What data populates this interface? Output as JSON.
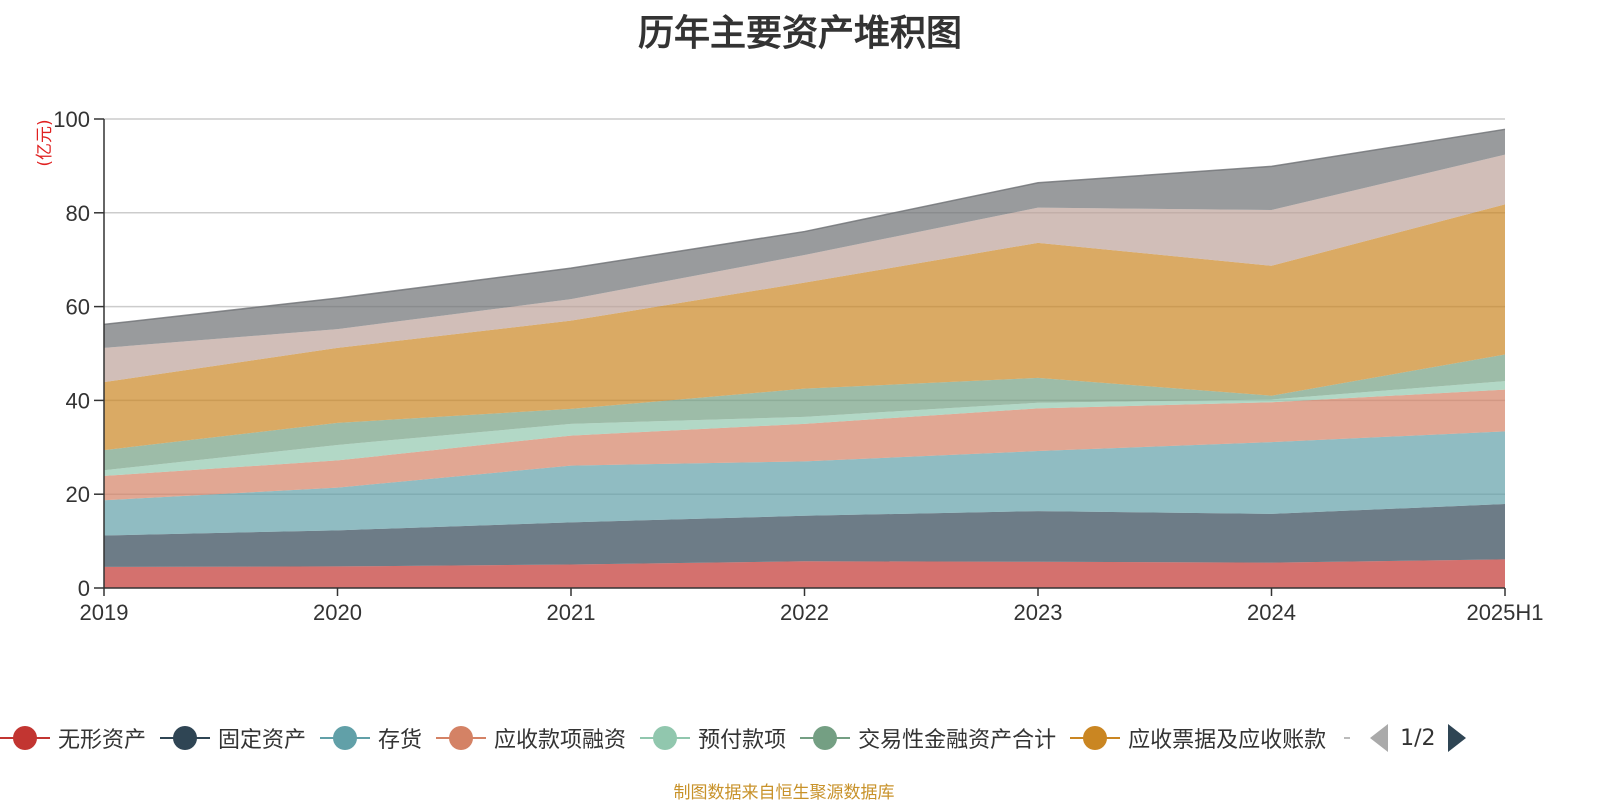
{
  "chart_data": {
    "type": "area",
    "stacked": true,
    "title": "历年主要资产堆积图",
    "ylabel": "亿元",
    "xlabel": "",
    "ylim": [
      0,
      100
    ],
    "yticks": [
      0,
      20,
      40,
      60,
      80,
      100
    ],
    "grid": true,
    "legend_placement": "bottom",
    "categories": [
      "2019",
      "2020",
      "2021",
      "2022",
      "2023",
      "2024",
      "2025H1"
    ],
    "series": [
      {
        "name": "无形资产",
        "color": "#c23531",
        "values": [
          4.5,
          4.6,
          5.0,
          5.7,
          5.6,
          5.4,
          6.1
        ]
      },
      {
        "name": "固定资产",
        "color": "#2f4554",
        "values": [
          6.7,
          7.7,
          9.0,
          9.7,
          10.8,
          10.4,
          11.8
        ]
      },
      {
        "name": "存货",
        "color": "#61a0a8",
        "values": [
          7.5,
          9.1,
          12.1,
          11.6,
          12.8,
          15.3,
          15.5
        ]
      },
      {
        "name": "应收款项融资",
        "color": "#d48265",
        "values": [
          5.2,
          5.8,
          6.4,
          8.0,
          9.1,
          8.5,
          8.9
        ]
      },
      {
        "name": "预付款项",
        "color": "#91c7ae",
        "values": [
          1.2,
          3.3,
          2.5,
          1.5,
          1.2,
          0.6,
          1.8
        ]
      },
      {
        "name": "交易性金融资产合计",
        "color": "#749f83",
        "values": [
          4.3,
          4.7,
          3.2,
          6.0,
          5.3,
          0.8,
          5.7
        ]
      },
      {
        "name": "应收票据及应收账款",
        "color": "#ca8622",
        "values": [
          14.5,
          16.0,
          18.8,
          22.6,
          28.8,
          27.7,
          32.0
        ]
      },
      {
        "name": "",
        "color": "#bda29a",
        "values": [
          7.3,
          4.0,
          4.6,
          5.9,
          7.5,
          11.9,
          10.6
        ]
      },
      {
        "name": "",
        "color": "#6e7074",
        "values": [
          5.0,
          6.6,
          6.6,
          5.0,
          5.3,
          9.3,
          5.4
        ]
      }
    ]
  },
  "legend": {
    "page_text": "1/2",
    "more_color": "#bbbbbb"
  },
  "source_text": "制图数据来自恒生聚源数据库"
}
